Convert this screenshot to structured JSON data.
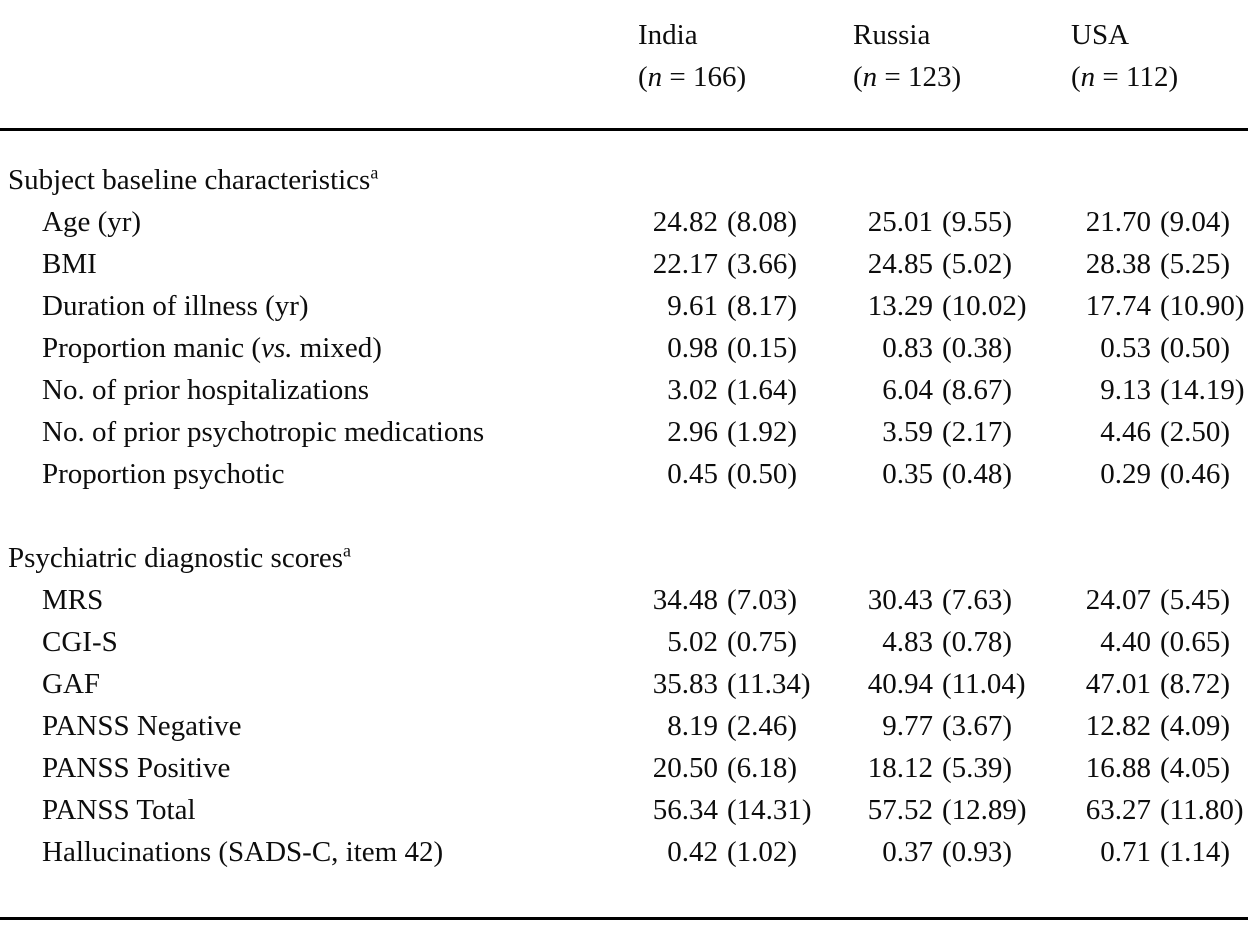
{
  "page": {
    "background_color": "#ffffff",
    "text_color": "#0d0d0d",
    "rule_color": "#000000"
  },
  "table": {
    "columns": [
      {
        "name": "India",
        "n": "166"
      },
      {
        "name": "Russia",
        "n": "123"
      },
      {
        "name": "USA",
        "n": "112"
      }
    ],
    "sections": [
      {
        "title": "Subject baseline characteristics",
        "footnote_marker": "a",
        "rows": [
          {
            "label": "Age (yr)",
            "values": [
              "24.82 (8.08)",
              "25.01 (9.55)",
              "21.70 (9.04)"
            ]
          },
          {
            "label": "BMI",
            "values": [
              "22.17 (3.66)",
              "24.85 (5.02)",
              "28.38 (5.25)"
            ]
          },
          {
            "label": "Duration of illness (yr)",
            "values": [
              "9.61 (8.17)",
              "13.29 (10.02)",
              "17.74 (10.90)"
            ]
          },
          {
            "label": "Proportion manic (vs. mixed)",
            "italic_segments": [
              "vs."
            ],
            "values": [
              "0.98 (0.15)",
              "0.83 (0.38)",
              "0.53 (0.50)"
            ]
          },
          {
            "label": "No. of prior hospitalizations",
            "values": [
              "3.02 (1.64)",
              "6.04 (8.67)",
              "9.13 (14.19)"
            ]
          },
          {
            "label": "No. of prior psychotropic medications",
            "values": [
              "2.96 (1.92)",
              "3.59 (2.17)",
              "4.46 (2.50)"
            ]
          },
          {
            "label": "Proportion psychotic",
            "values": [
              "0.45 (0.50)",
              "0.35 (0.48)",
              "0.29 (0.46)"
            ]
          }
        ]
      },
      {
        "title": "Psychiatric diagnostic scores",
        "footnote_marker": "a",
        "rows": [
          {
            "label": "MRS",
            "values": [
              "34.48 (7.03)",
              "30.43 (7.63)",
              "24.07 (5.45)"
            ]
          },
          {
            "label": "CGI-S",
            "values": [
              "5.02 (0.75)",
              "4.83 (0.78)",
              "4.40 (0.65)"
            ]
          },
          {
            "label": "GAF",
            "values": [
              "35.83 (11.34)",
              "40.94 (11.04)",
              "47.01 (8.72)"
            ]
          },
          {
            "label": "PANSS Negative",
            "values": [
              "8.19 (2.46)",
              "9.77 (3.67)",
              "12.82 (4.09)"
            ]
          },
          {
            "label": "PANSS Positive",
            "values": [
              "20.50 (6.18)",
              "18.12 (5.39)",
              "16.88 (4.05)"
            ]
          },
          {
            "label": "PANSS Total",
            "values": [
              "56.34 (14.31)",
              "57.52 (12.89)",
              "63.27 (11.80)"
            ]
          },
          {
            "label": "Hallucinations (SADS-C, item 42)",
            "values": [
              "0.42 (1.02)",
              "0.37 (0.93)",
              "0.71 (1.14)"
            ]
          }
        ]
      }
    ]
  }
}
